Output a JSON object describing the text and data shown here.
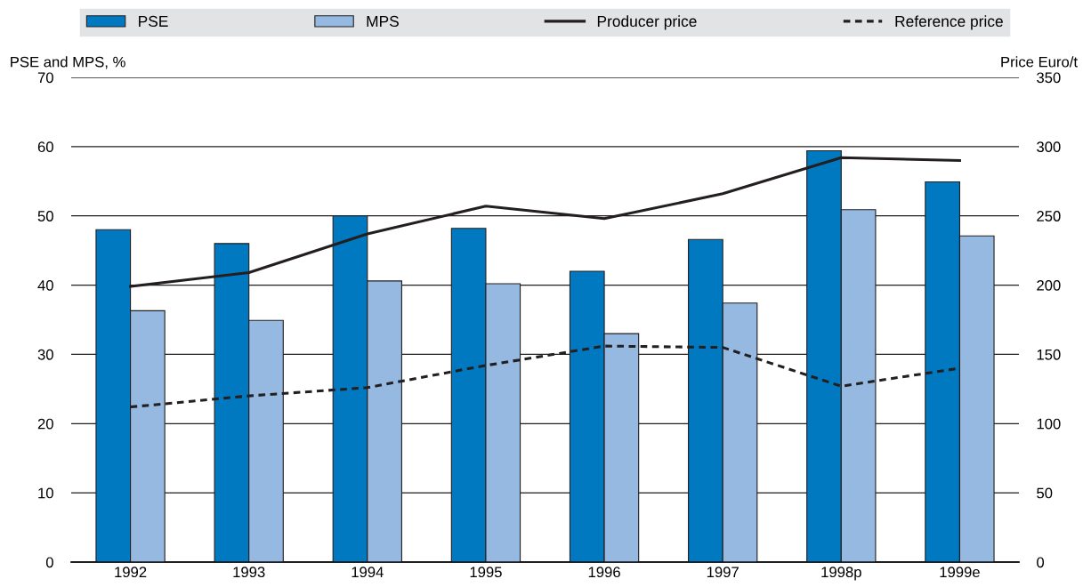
{
  "chart_data": {
    "type": "bar",
    "categories": [
      "1992",
      "1993",
      "1994",
      "1995",
      "1996",
      "1997",
      "1998p",
      "1999e"
    ],
    "ylabel": "PSE and MPS, %",
    "y2label": "Price Euro/t",
    "ylim": [
      0,
      70
    ],
    "yticks": [
      0,
      10,
      20,
      30,
      40,
      50,
      60,
      70
    ],
    "y2lim": [
      0,
      350
    ],
    "y2ticks": [
      0,
      50,
      100,
      150,
      200,
      250,
      300,
      350
    ],
    "grid": "y",
    "legend": "top",
    "series": [
      {
        "name": "PSE",
        "color": "#0079c1",
        "values": [
          48,
          46,
          50,
          48.2,
          42,
          46.6,
          59.4,
          54.9
        ]
      },
      {
        "name": "MPS",
        "color": "#95b9e1",
        "values": [
          36.3,
          34.9,
          40.6,
          40.2,
          33,
          37.4,
          50.9,
          47.1
        ]
      },
      {
        "name": "Producer price",
        "type": "line",
        "axis": "y2",
        "color": "#231f20",
        "line_style": "solid",
        "values": [
          199,
          209,
          237,
          257,
          248,
          266,
          292,
          290
        ]
      },
      {
        "name": "Reference price",
        "type": "line",
        "axis": "y2",
        "color": "#231f20",
        "line_style": "dashed",
        "values": [
          112,
          120,
          126,
          142,
          156,
          155,
          127,
          140
        ]
      }
    ]
  }
}
